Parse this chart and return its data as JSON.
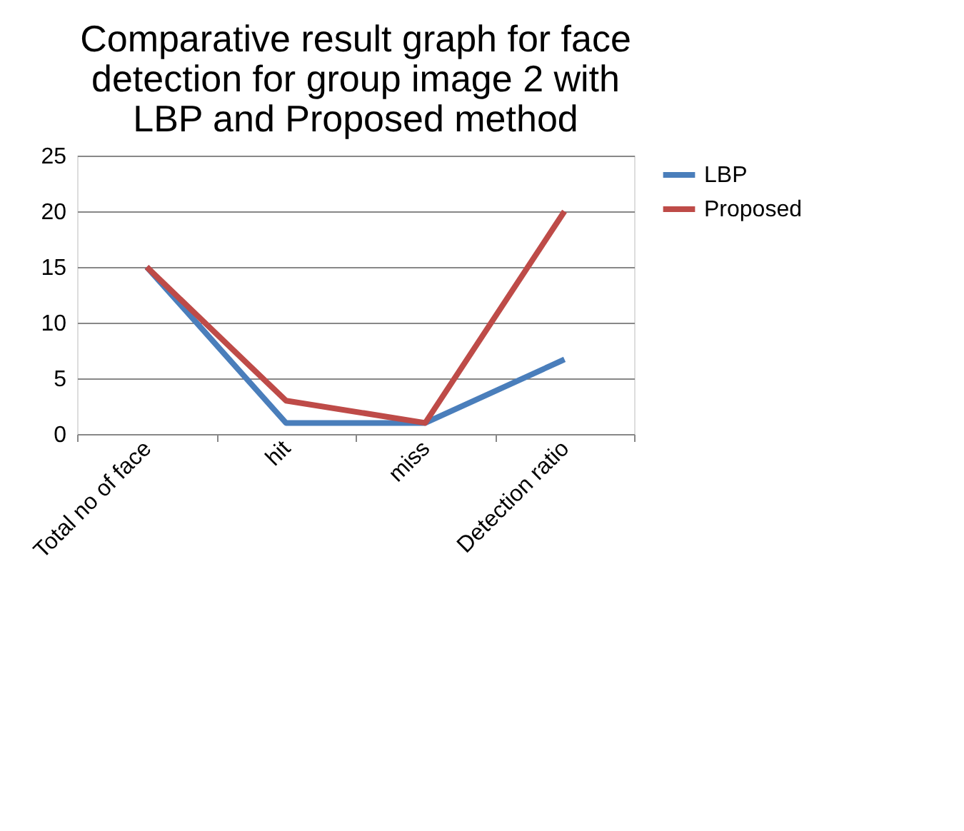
{
  "chart_data": {
    "type": "line",
    "title": "Comparative result graph for face\ndetection for group image 2 with\nLBP and Proposed method",
    "categories": [
      "Total no of face",
      "hit",
      "miss",
      "Detection ratio"
    ],
    "series": [
      {
        "name": "LBP",
        "color": "#4a7ebb",
        "values": [
          15,
          1,
          1,
          6.7
        ]
      },
      {
        "name": "Proposed",
        "color": "#be4b48",
        "values": [
          15,
          3,
          1,
          20
        ]
      }
    ],
    "ylim": [
      0,
      25
    ],
    "yticks": [
      0,
      5,
      10,
      15,
      20,
      25
    ],
    "grid": "y",
    "legend": "right",
    "marker": "none",
    "line_style": "solid"
  }
}
